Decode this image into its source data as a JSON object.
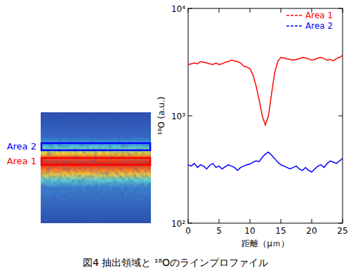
{
  "chart_data": {
    "type": "line",
    "caption": "図4 抽出領域と ¹⁸Oのラインプロファイル",
    "x_label": "距離（μｍ）",
    "y_label": "¹⁸O (a.u.)",
    "log": "y",
    "legend": "top-right",
    "grid": false,
    "xlim": [
      0,
      25
    ],
    "xticks": [
      0,
      5,
      10,
      15,
      20,
      25
    ],
    "ylim": [
      100,
      10000
    ],
    "yticks": [
      {
        "value": 100,
        "label": "10²"
      },
      {
        "value": 1000,
        "label": "10³"
      },
      {
        "value": 10000,
        "label": "10⁴"
      }
    ],
    "x": [
      0,
      0.5,
      1,
      1.5,
      2,
      2.5,
      3,
      3.5,
      4,
      4.5,
      5,
      5.5,
      6,
      6.5,
      7,
      7.5,
      8,
      8.5,
      9,
      9.5,
      10,
      10.5,
      11,
      11.5,
      12,
      12.5,
      13,
      13.5,
      14,
      14.5,
      15,
      15.5,
      16,
      16.5,
      17,
      17.5,
      18,
      18.5,
      19,
      19.5,
      20,
      20.5,
      21,
      21.5,
      22,
      22.5,
      23,
      23.5,
      24,
      24.5,
      25
    ],
    "series": [
      {
        "name": "Area 1",
        "color": "#ff0000",
        "line_style": "solid",
        "values": [
          3000,
          3050,
          3100,
          3050,
          3200,
          3150,
          3100,
          3050,
          3000,
          3100,
          3000,
          3050,
          3150,
          3200,
          3300,
          3250,
          3200,
          3100,
          2900,
          2850,
          2750,
          2400,
          1900,
          1400,
          1000,
          820,
          1000,
          1600,
          2500,
          3200,
          3500,
          3450,
          3400,
          3350,
          3300,
          3350,
          3400,
          3500,
          3450,
          3400,
          3300,
          3350,
          3450,
          3500,
          3400,
          3300,
          3350,
          3250,
          3400,
          3500,
          3650
        ]
      },
      {
        "name": "Area 2",
        "color": "#0000ff",
        "line_style": "solid",
        "values": [
          350,
          340,
          360,
          330,
          350,
          340,
          320,
          345,
          360,
          330,
          340,
          320,
          335,
          350,
          340,
          330,
          310,
          330,
          340,
          350,
          355,
          370,
          380,
          375,
          410,
          440,
          460,
          430,
          400,
          370,
          350,
          340,
          330,
          320,
          330,
          340,
          320,
          310,
          330,
          310,
          300,
          320,
          340,
          350,
          330,
          360,
          380,
          370,
          360,
          380,
          400
        ]
      }
    ],
    "regions": [
      {
        "name": "Area 2",
        "color": "#0000ff"
      },
      {
        "name": "Area 1",
        "color": "#ff0000"
      }
    ]
  }
}
